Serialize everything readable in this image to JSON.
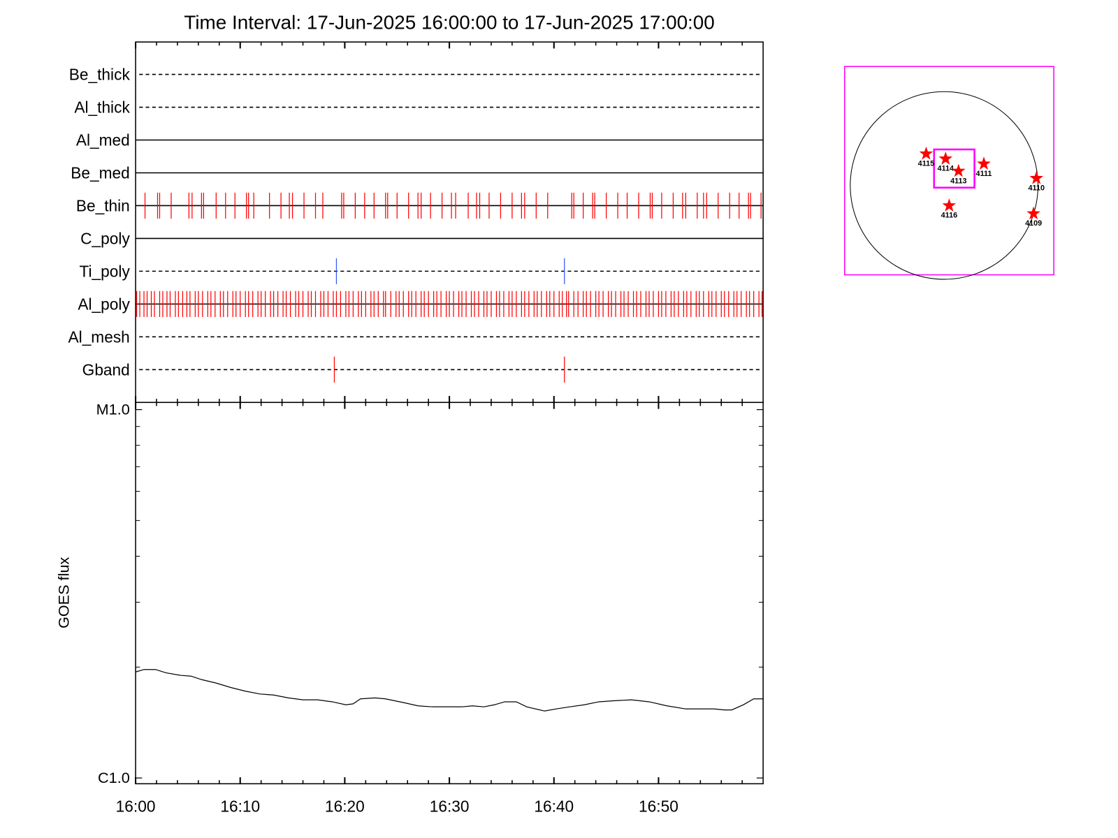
{
  "chart_data": [
    {
      "type": "timeline",
      "title": "Time Interval: 17-Jun-2025 16:00:00 to 17-Jun-2025 17:00:00",
      "xlim": [
        0,
        60
      ],
      "rows": [
        {
          "name": "Be_thick",
          "line": "dashed",
          "color": "#ff0000",
          "events": []
        },
        {
          "name": "Al_thick",
          "line": "dashed",
          "color": "#ff0000",
          "events": []
        },
        {
          "name": "Al_med",
          "line": "solid",
          "color": "#ff0000",
          "events": []
        },
        {
          "name": "Be_med",
          "line": "solid",
          "color": "#ff0000",
          "events": []
        },
        {
          "name": "Be_thin",
          "line": "solid",
          "color": "#ff0000",
          "events": [
            0.9,
            2.1,
            2.3,
            3.4,
            5.1,
            5.4,
            6.3,
            6.5,
            7.7,
            8.6,
            9.5,
            10.6,
            10.8,
            11.3,
            12.8,
            13.9,
            14.7,
            15.0,
            16.1,
            17.2,
            17.9,
            19.7,
            19.9,
            21.0,
            21.9,
            22.8,
            23.9,
            24.1,
            25.0,
            26.1,
            27.0,
            27.3,
            28.2,
            29.3,
            30.2,
            30.6,
            31.8,
            32.6,
            32.9,
            33.8,
            34.9,
            36.0,
            36.9,
            37.2,
            38.3,
            39.4,
            41.7,
            41.9,
            42.8,
            43.7,
            43.9,
            45.0,
            46.1,
            47.0,
            48.1,
            49.2,
            49.4,
            50.3,
            51.4,
            52.3,
            52.6,
            53.7,
            54.3,
            54.6,
            55.7,
            56.8,
            57.7,
            58.6,
            58.8,
            59.8
          ]
        },
        {
          "name": "C_poly",
          "line": "solid",
          "color": "#ff0000",
          "events": []
        },
        {
          "name": "Ti_poly",
          "line": "dashed",
          "color": "#3355ff",
          "events": [
            19.2,
            41.0
          ]
        },
        {
          "name": "Al_poly",
          "line": "solid",
          "color": "#ff0000",
          "events": [
            0.1,
            0.4,
            0.8,
            1.1,
            1.5,
            1.8,
            2.3,
            2.6,
            3.0,
            3.3,
            3.8,
            4.1,
            4.5,
            4.9,
            5.2,
            5.7,
            6.0,
            6.4,
            6.9,
            7.2,
            7.6,
            8.1,
            8.4,
            8.8,
            9.3,
            9.6,
            10.0,
            10.5,
            10.8,
            11.2,
            11.7,
            12.0,
            12.4,
            12.9,
            13.2,
            13.6,
            14.1,
            14.4,
            14.8,
            15.3,
            15.6,
            16.0,
            16.5,
            16.8,
            17.2,
            17.7,
            18.0,
            18.4,
            18.9,
            19.2,
            19.6,
            20.1,
            20.4,
            20.8,
            21.3,
            21.6,
            22.0,
            22.5,
            22.8,
            23.2,
            23.7,
            23.9,
            24.4,
            24.9,
            25.2,
            25.6,
            26.1,
            26.4,
            26.8,
            27.3,
            27.6,
            28.0,
            28.5,
            28.8,
            29.2,
            29.7,
            30.0,
            30.4,
            30.9,
            31.2,
            31.6,
            32.1,
            32.4,
            32.8,
            33.3,
            33.6,
            34.0,
            34.5,
            34.8,
            35.2,
            35.7,
            36.0,
            36.4,
            36.9,
            37.2,
            37.6,
            38.1,
            38.4,
            38.8,
            39.3,
            39.6,
            40.0,
            40.5,
            40.8,
            41.2,
            41.4,
            41.9,
            42.3,
            42.8,
            43.1,
            43.5,
            44.0,
            44.3,
            44.7,
            45.2,
            45.5,
            45.9,
            46.4,
            46.7,
            47.1,
            47.6,
            47.9,
            48.3,
            48.8,
            49.1,
            49.5,
            50.0,
            50.3,
            50.7,
            51.2,
            51.5,
            51.9,
            52.4,
            52.7,
            53.1,
            53.6,
            53.9,
            54.3,
            54.8,
            55.1,
            55.5,
            56.0,
            56.3,
            56.7,
            57.2,
            57.5,
            57.9,
            58.4,
            58.7,
            59.1,
            59.6,
            59.9
          ]
        },
        {
          "name": "Al_mesh",
          "line": "dashed",
          "color": "#ff0000",
          "events": []
        },
        {
          "name": "Gband",
          "line": "dashed",
          "color": "#ff0000",
          "events": [
            19.0,
            41.0
          ]
        }
      ]
    },
    {
      "type": "line",
      "ylabel": "GOES flux",
      "color": "#000000",
      "log": true,
      "xlim": [
        0,
        60
      ],
      "xticks": [
        {
          "value": 0,
          "label": "16:00"
        },
        {
          "value": 10,
          "label": "16:10"
        },
        {
          "value": 20,
          "label": "16:20"
        },
        {
          "value": 30,
          "label": "16:30"
        },
        {
          "value": 40,
          "label": "16:40"
        },
        {
          "value": 50,
          "label": "16:50"
        }
      ],
      "xminor": [
        2,
        4,
        6,
        8,
        12,
        14,
        16,
        18,
        22,
        24,
        26,
        28,
        32,
        34,
        36,
        38,
        42,
        44,
        46,
        48,
        52,
        54,
        56,
        58
      ],
      "ylim": [
        1e-06,
        1e-05
      ],
      "yticks": [
        {
          "value": 1e-06,
          "label": "C1.0"
        },
        {
          "value": 1e-05,
          "label": "M1.0"
        }
      ],
      "yminor": [
        2e-06,
        3e-06,
        4e-06,
        5e-06,
        6e-06,
        7e-06,
        8e-06,
        9e-06
      ],
      "x": [
        0,
        0.8,
        1.9,
        2.9,
        4.3,
        5.3,
        6.3,
        7.7,
        9.1,
        10.5,
        11.9,
        13.2,
        14.6,
        16.0,
        17.4,
        18.8,
        20.1,
        20.8,
        21.5,
        22.9,
        23.9,
        25.7,
        27.0,
        28.4,
        30.1,
        31.2,
        32.2,
        33.3,
        34.3,
        35.3,
        36.4,
        37.4,
        39.1,
        40.2,
        41.5,
        42.9,
        44.3,
        45.7,
        47.4,
        49.1,
        50.8,
        52.6,
        53.9,
        55.3,
        56.3,
        57.0,
        58.1,
        59.1,
        60.0
      ],
      "values": [
        1.94e-06,
        1.97e-06,
        1.97e-06,
        1.93e-06,
        1.9e-06,
        1.89e-06,
        1.85e-06,
        1.81e-06,
        1.76e-06,
        1.72e-06,
        1.69e-06,
        1.68e-06,
        1.65e-06,
        1.63e-06,
        1.63e-06,
        1.61e-06,
        1.58e-06,
        1.59e-06,
        1.64e-06,
        1.65e-06,
        1.64e-06,
        1.6e-06,
        1.57e-06,
        1.56e-06,
        1.56e-06,
        1.56e-06,
        1.57e-06,
        1.56e-06,
        1.58e-06,
        1.61e-06,
        1.61e-06,
        1.56e-06,
        1.52e-06,
        1.54e-06,
        1.56e-06,
        1.58e-06,
        1.61e-06,
        1.62e-06,
        1.63e-06,
        1.61e-06,
        1.57e-06,
        1.54e-06,
        1.54e-06,
        1.54e-06,
        1.53e-06,
        1.53e-06,
        1.58e-06,
        1.64e-06,
        1.64e-06
      ]
    },
    {
      "type": "map",
      "xlim": [
        -1007,
        1110
      ],
      "ylim": [
        -905,
        1205
      ],
      "rsun": 950,
      "frame_color": "#ff00ff",
      "box": {
        "x": [
          -102,
          307
        ],
        "y": [
          -22,
          365
        ]
      },
      "color": "#ff0000",
      "x": [
        -182,
        15,
        146,
        402,
        934,
        905,
        51
      ],
      "y": [
        321,
        270,
        146,
        219,
        73,
        -285,
        -204
      ],
      "labels": [
        "4115",
        "4114",
        "4113",
        "4111",
        "4110",
        "4109",
        "4116"
      ]
    }
  ]
}
